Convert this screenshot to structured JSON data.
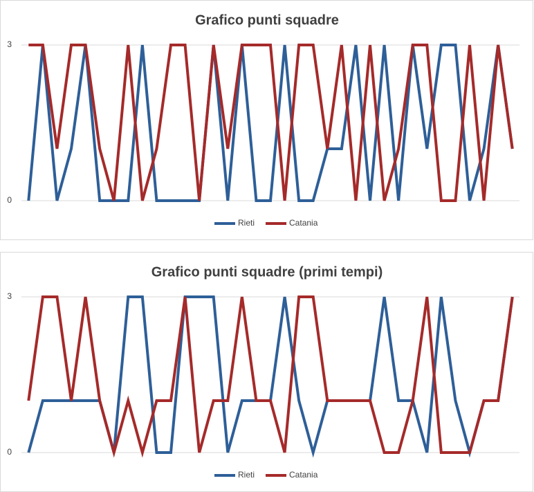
{
  "chart_data": [
    {
      "type": "line",
      "title": "Grafico punti squadre",
      "categories": [
        null,
        null,
        null,
        null,
        null,
        null,
        null,
        null,
        null,
        null,
        null,
        null,
        null,
        null,
        null,
        null,
        null,
        null,
        null,
        null,
        null,
        null,
        null,
        null,
        null,
        null,
        null,
        null,
        null,
        null,
        null,
        null,
        null,
        null,
        null
      ],
      "series": [
        {
          "name": "Rieti",
          "color": "#2e5f98",
          "values": [
            0,
            3,
            0,
            1,
            3,
            0,
            0,
            0,
            3,
            0,
            0,
            0,
            0,
            3,
            0,
            3,
            0,
            0,
            3,
            0,
            0,
            1,
            1,
            3,
            0,
            3,
            0,
            3,
            1,
            3,
            3,
            0,
            1,
            3,
            1
          ]
        },
        {
          "name": "Catania",
          "color": "#a52a2a",
          "values": [
            3,
            3,
            1,
            3,
            3,
            1,
            0,
            3,
            0,
            1,
            3,
            3,
            0,
            3,
            1,
            3,
            3,
            3,
            0,
            3,
            3,
            1,
            3,
            0,
            3,
            0,
            1,
            3,
            3,
            0,
            0,
            3,
            0,
            3,
            1
          ]
        }
      ],
      "ylim": [
        0,
        3
      ],
      "yticks": [
        0,
        3
      ],
      "grid": true,
      "legend": "bottom"
    },
    {
      "type": "line",
      "title": "Grafico punti squadre (primi tempi)",
      "categories": [
        null,
        null,
        null,
        null,
        null,
        null,
        null,
        null,
        null,
        null,
        null,
        null,
        null,
        null,
        null,
        null,
        null,
        null,
        null,
        null,
        null,
        null,
        null,
        null,
        null,
        null,
        null,
        null,
        null,
        null,
        null,
        null,
        null,
        null,
        null
      ],
      "series": [
        {
          "name": "Rieti",
          "color": "#2e5f98",
          "values": [
            0,
            1,
            1,
            1,
            1,
            1,
            0,
            3,
            3,
            0,
            0,
            3,
            3,
            3,
            0,
            1,
            1,
            1,
            3,
            1,
            0,
            1,
            1,
            1,
            1,
            3,
            1,
            1,
            0,
            3,
            1,
            0,
            1,
            1,
            3
          ]
        },
        {
          "name": "Catania",
          "color": "#a52a2a",
          "values": [
            1,
            3,
            3,
            1,
            3,
            1,
            0,
            1,
            0,
            1,
            1,
            3,
            0,
            1,
            1,
            3,
            1,
            1,
            0,
            3,
            3,
            1,
            1,
            1,
            1,
            0,
            0,
            1,
            3,
            0,
            0,
            0,
            1,
            1,
            3
          ]
        }
      ],
      "ylim": [
        0,
        3
      ],
      "yticks": [
        0,
        3
      ],
      "grid": true,
      "legend": "bottom"
    }
  ]
}
